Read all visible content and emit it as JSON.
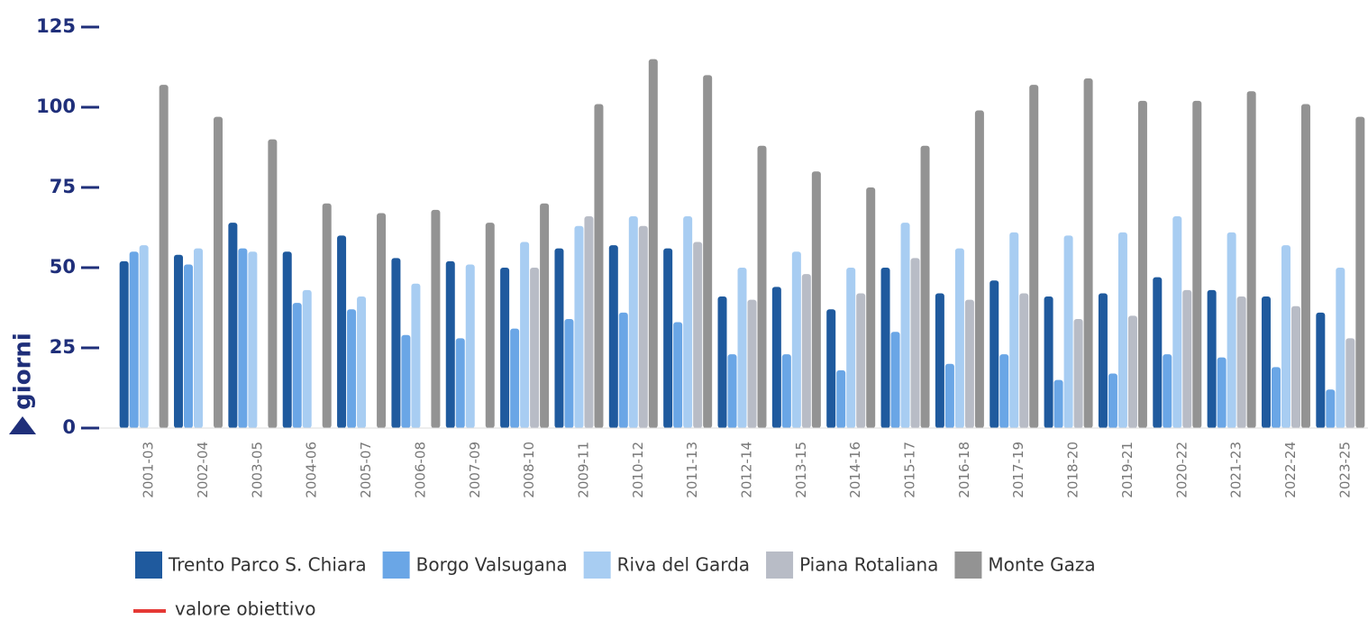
{
  "chart_data": {
    "type": "bar",
    "y_label": "giorni",
    "categories": [
      "2001-03",
      "2002-04",
      "2003-05",
      "2004-06",
      "2005-07",
      "2006-08",
      "2007-09",
      "2008-10",
      "2009-11",
      "2010-12",
      "2011-13",
      "2012-14",
      "2013-15",
      "2014-16",
      "2015-17",
      "2016-18",
      "2017-19",
      "2018-20",
      "2019-21",
      "2020-22",
      "2021-23",
      "2022-24",
      "2023-25"
    ],
    "series": [
      {
        "name": "Trento Parco S. Chiara",
        "color": "#1f5a9e",
        "values": [
          52,
          54,
          64,
          55,
          60,
          53,
          52,
          50,
          56,
          57,
          56,
          41,
          44,
          37,
          50,
          42,
          46,
          41,
          42,
          47,
          43,
          41,
          36
        ]
      },
      {
        "name": "Borgo Valsugana",
        "color": "#6aa6e6",
        "values": [
          55,
          51,
          56,
          39,
          37,
          29,
          28,
          31,
          34,
          36,
          33,
          23,
          23,
          18,
          30,
          20,
          23,
          15,
          17,
          23,
          22,
          19,
          12
        ]
      },
      {
        "name": "Riva del Garda",
        "color": "#a8cdf2",
        "values": [
          57,
          56,
          55,
          43,
          41,
          45,
          51,
          58,
          63,
          66,
          66,
          50,
          55,
          50,
          64,
          56,
          61,
          60,
          61,
          66,
          61,
          57,
          50
        ]
      },
      {
        "name": "Piana Rotaliana",
        "color": "#b8bcc6",
        "values": [
          null,
          null,
          null,
          null,
          null,
          null,
          null,
          50,
          66,
          63,
          58,
          40,
          48,
          42,
          53,
          40,
          42,
          34,
          35,
          43,
          41,
          38,
          28
        ]
      },
      {
        "name": "Monte Gaza",
        "color": "#939393",
        "values": [
          107,
          97,
          90,
          70,
          67,
          68,
          64,
          70,
          101,
          115,
          110,
          88,
          80,
          75,
          88,
          99,
          107,
          109,
          102,
          102,
          105,
          101,
          97
        ]
      }
    ],
    "reference_line": {
      "name": "valore obiettivo",
      "color": "#e53935"
    },
    "ylim": [
      0,
      125
    ],
    "yticks": [
      0,
      25,
      50,
      75,
      100,
      125
    ]
  }
}
